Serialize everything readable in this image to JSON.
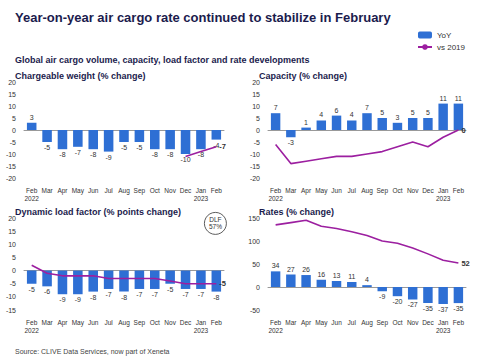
{
  "title": "Year-on-year air cargo rate continued to stabilize in February",
  "subtitle": "Global air cargo volume, capacity, load factor and rate developments",
  "source": "Source: CLIVE Data Services, now part of Xeneta",
  "chart_data": [
    {
      "type": "bar",
      "title": "Chargeable weight (% change)",
      "categories": [
        "Feb\n2022",
        "Mar",
        "Apr",
        "May",
        "Jun",
        "Jul",
        "Aug",
        "Sep",
        "Oct",
        "Nov",
        "Dec",
        "Jan\n2023",
        "Feb"
      ],
      "series": [
        {
          "name": "YoY",
          "type": "bar",
          "color": "#2e6fd4",
          "data_labels": true,
          "values": [
            3,
            -5,
            -8,
            -7,
            -8,
            -9,
            -5,
            -5,
            -8,
            -8,
            -10,
            -8,
            -4
          ]
        },
        {
          "name": "vs 2019",
          "type": "line",
          "color": "#9c1fa0",
          "values": [
            null,
            null,
            null,
            null,
            null,
            null,
            null,
            null,
            null,
            null,
            -11,
            -9,
            -7
          ],
          "value_labels": [
            null,
            null,
            null,
            null,
            null,
            null,
            null,
            null,
            null,
            null,
            null,
            null,
            "-7"
          ]
        }
      ],
      "ylim": [
        -20,
        20
      ],
      "yticks": [
        -20,
        -15,
        -10,
        -5,
        0,
        5,
        10,
        15,
        20
      ],
      "grid": false
    },
    {
      "type": "bar",
      "title": "Capacity (% change)",
      "categories": [
        "Feb\n2022",
        "Mar",
        "Apr",
        "May",
        "Jun",
        "Jul",
        "Aug",
        "Sep",
        "Oct",
        "Nov",
        "Dec",
        "Jan\n2023",
        "Feb"
      ],
      "series": [
        {
          "name": "YoY",
          "type": "bar",
          "color": "#2e6fd4",
          "data_labels": true,
          "values": [
            7,
            -3,
            1,
            4,
            6,
            4,
            7,
            5,
            3,
            5,
            5,
            11,
            11
          ]
        },
        {
          "name": "vs 2019",
          "type": "line",
          "color": "#9c1fa0",
          "values": [
            -6,
            -14,
            -13,
            -12,
            -11,
            -11,
            -10,
            -9,
            -7,
            -5,
            -7,
            -3,
            0
          ],
          "value_labels": [
            null,
            null,
            null,
            null,
            null,
            null,
            null,
            null,
            null,
            null,
            null,
            null,
            "0"
          ]
        }
      ],
      "ylim": [
        -20,
        20
      ],
      "yticks": [
        -20,
        -15,
        -10,
        -5,
        0,
        5,
        10,
        15,
        20
      ],
      "grid": false,
      "legend": "top-right"
    },
    {
      "type": "bar",
      "title": "Dynamic load factor (% points change)",
      "annotation": "DLF\n57%",
      "categories": [
        "Feb\n2022",
        "Mar",
        "Apr",
        "May",
        "Jun",
        "Jul",
        "Aug",
        "Sep",
        "Oct",
        "Nov",
        "Dec",
        "Jan\n2023",
        "Feb"
      ],
      "series": [
        {
          "name": "YoY",
          "type": "bar",
          "color": "#2e6fd4",
          "data_labels": true,
          "values": [
            -5,
            -6,
            -9,
            -9,
            -8,
            -7,
            -8,
            -7,
            -7,
            -5,
            -7,
            -7,
            -8
          ]
        },
        {
          "name": "vs 2019",
          "type": "line",
          "color": "#9c1fa0",
          "values": [
            2,
            -1,
            -2,
            -2,
            -2,
            -3,
            -3,
            -3,
            -3,
            -4,
            -5,
            -5,
            -5
          ],
          "value_labels": [
            null,
            null,
            null,
            null,
            null,
            null,
            null,
            null,
            null,
            null,
            null,
            null,
            "-5"
          ]
        }
      ],
      "ylim": [
        -15,
        20
      ],
      "yticks": [
        -15,
        -10,
        -5,
        0,
        5,
        10,
        15,
        20
      ],
      "grid": false
    },
    {
      "type": "bar",
      "title": "Rates (% change)",
      "categories": [
        "Feb\n2022",
        "Mar",
        "Apr",
        "May",
        "Jun",
        "Jul",
        "Aug",
        "Sep",
        "Oct",
        "Nov",
        "Dec",
        "Jan\n2023",
        "Feb"
      ],
      "series": [
        {
          "name": "YoY",
          "type": "bar",
          "color": "#2e6fd4",
          "data_labels": true,
          "values": [
            34,
            27,
            26,
            16,
            13,
            11,
            4,
            -9,
            -20,
            -27,
            -35,
            -37,
            -35
          ]
        },
        {
          "name": "vs 2019",
          "type": "line",
          "color": "#9c1fa0",
          "values": [
            135,
            140,
            145,
            132,
            127,
            120,
            112,
            100,
            95,
            85,
            72,
            58,
            52
          ],
          "value_labels": [
            null,
            null,
            null,
            null,
            null,
            null,
            null,
            null,
            null,
            null,
            null,
            null,
            "52"
          ]
        }
      ],
      "ylim": [
        -50,
        150
      ],
      "yticks": [
        -50,
        0,
        50,
        100,
        150
      ],
      "grid": false
    }
  ]
}
